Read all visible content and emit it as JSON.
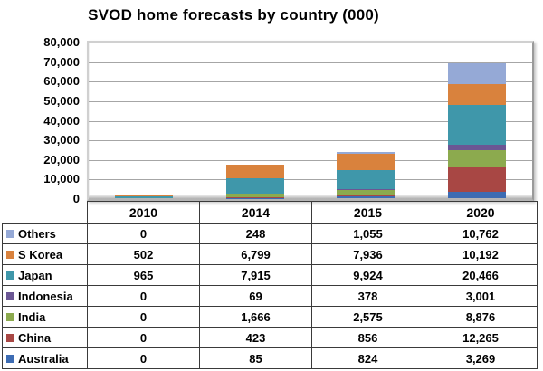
{
  "title": "SVOD home forecasts by country (000)",
  "chart_data": {
    "type": "bar",
    "stacked": true,
    "title": "SVOD home forecasts by country (000)",
    "categories": [
      "2010",
      "2014",
      "2015",
      "2020"
    ],
    "series": [
      {
        "name": "Australia",
        "color": "#3d6cb3",
        "values": [
          0,
          85,
          824,
          3269
        ]
      },
      {
        "name": "China",
        "color": "#a84744",
        "values": [
          0,
          423,
          856,
          12265
        ]
      },
      {
        "name": "India",
        "color": "#8caa4e",
        "values": [
          0,
          1666,
          2575,
          8876
        ]
      },
      {
        "name": "Indonesia",
        "color": "#6b5694",
        "values": [
          0,
          69,
          378,
          3001
        ]
      },
      {
        "name": "Japan",
        "color": "#3f97aa",
        "values": [
          965,
          7915,
          9924,
          20466
        ]
      },
      {
        "name": "S Korea",
        "color": "#d9823d",
        "values": [
          502,
          6799,
          7936,
          10192
        ]
      },
      {
        "name": "Others",
        "color": "#95a9d6",
        "values": [
          0,
          248,
          1055,
          10762
        ]
      }
    ],
    "ylim": [
      0,
      80000
    ],
    "ytick_interval": 10000,
    "ytick_labels": [
      "80,000",
      "70,000",
      "60,000",
      "50,000",
      "40,000",
      "30,000",
      "20,000",
      "10,000",
      "0"
    ],
    "grid": true,
    "legend_position": "data-table-left-column"
  },
  "table": {
    "year_headers": [
      "2010",
      "2014",
      "2015",
      "2020"
    ],
    "rows": [
      {
        "label": "Others",
        "color": "#95a9d6",
        "values": [
          "0",
          "248",
          "1,055",
          "10,762"
        ]
      },
      {
        "label": "S Korea",
        "color": "#d9823d",
        "values": [
          "502",
          "6,799",
          "7,936",
          "10,192"
        ]
      },
      {
        "label": "Japan",
        "color": "#3f97aa",
        "values": [
          "965",
          "7,915",
          "9,924",
          "20,466"
        ]
      },
      {
        "label": "Indonesia",
        "color": "#6b5694",
        "values": [
          "0",
          "69",
          "378",
          "3,001"
        ]
      },
      {
        "label": "India",
        "color": "#8caa4e",
        "values": [
          "0",
          "1,666",
          "2,575",
          "8,876"
        ]
      },
      {
        "label": "China",
        "color": "#a84744",
        "values": [
          "0",
          "423",
          "856",
          "12,265"
        ]
      },
      {
        "label": "Australia",
        "color": "#3d6cb3",
        "values": [
          "0",
          "85",
          "824",
          "3,269"
        ]
      }
    ]
  }
}
